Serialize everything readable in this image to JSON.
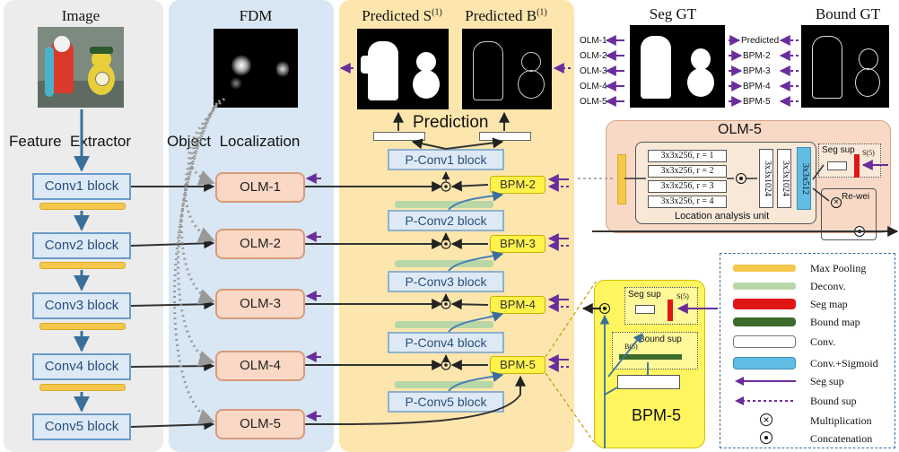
{
  "columns": {
    "image": "Image",
    "fdm": "FDM",
    "predicted_s": "Predicted S",
    "predicted_s_sup": "(1)",
    "predicted_b": "Predicted B",
    "predicted_b_sup": "(1)",
    "seg_gt": "Seg GT",
    "bound_gt": "Bound GT"
  },
  "section_labels": {
    "feature_extractor": "Feature  Extractor",
    "object_localization": "Object  Localization",
    "prediction": "Prediction"
  },
  "conv_blocks": [
    "Conv1 block",
    "Conv2 block",
    "Conv3 block",
    "Conv4 block",
    "Conv5 block"
  ],
  "olm_blocks": [
    "OLM-1",
    "OLM-2",
    "OLM-3",
    "OLM-4",
    "OLM-5"
  ],
  "pconv_blocks": [
    "P-Conv1 block",
    "P-Conv2 block",
    "P-Conv3 block",
    "P-Conv4 block",
    "P-Conv5 block"
  ],
  "bpm_blocks": [
    "BPM-2",
    "BPM-3",
    "BPM-4",
    "BPM-5"
  ],
  "gt_left_labels": [
    "OLM-1",
    "OLM-2",
    "OLM-3",
    "OLM-4",
    "OLM-5"
  ],
  "gt_right_labels": [
    "Predicted",
    "BPM-2",
    "BPM-3",
    "BPM-4",
    "BPM-5"
  ],
  "olm5_detail": {
    "title": "OLM-5",
    "branches": [
      "3x3x256, r = 1",
      "3x3x256, r = 2",
      "3x3x256, r = 3",
      "3x3x256, r = 4"
    ],
    "conv_a": "3x3x1024",
    "conv_b": "3x3x1024",
    "conv_sig": "3x3x512",
    "unit_label": "Location analysis unit",
    "seg_sup": "Seg sup",
    "s_label": "S(5)",
    "reweight": "Re-wei"
  },
  "bpm5_detail": {
    "title": "BPM-5",
    "seg_sup": "Seg sup",
    "s_label": "S(5)",
    "bound_sup": "Bound sup",
    "b_label": "B(5)"
  },
  "legend": [
    {
      "label": "Max Pooling",
      "color": "#f5c84c"
    },
    {
      "label": "Deconv.",
      "color": "#b8d7a6"
    },
    {
      "label": "Seg map",
      "color": "#e01515"
    },
    {
      "label": "Bound map",
      "color": "#3d6b2c"
    },
    {
      "label": "Conv.",
      "color": "#ffffff"
    },
    {
      "label": "Conv.+Sigmoid",
      "color": "#62bde6"
    },
    {
      "label": "Seg sup",
      "color": "#6a2d9b"
    },
    {
      "label": "Bound sup",
      "color": "#6a2d9b"
    },
    {
      "label": "Multiplication",
      "color": "#111111"
    },
    {
      "label": "Concatenation",
      "color": "#111111"
    }
  ],
  "colors": {
    "feature_panel": "#ececec",
    "fdm_panel": "#d8e7f3",
    "prediction_panel": "#fde6ad",
    "olm_panel": "#f7d9c6",
    "bpm_panel": "#fff55f",
    "arrow_purple": "#6a2d9b"
  }
}
